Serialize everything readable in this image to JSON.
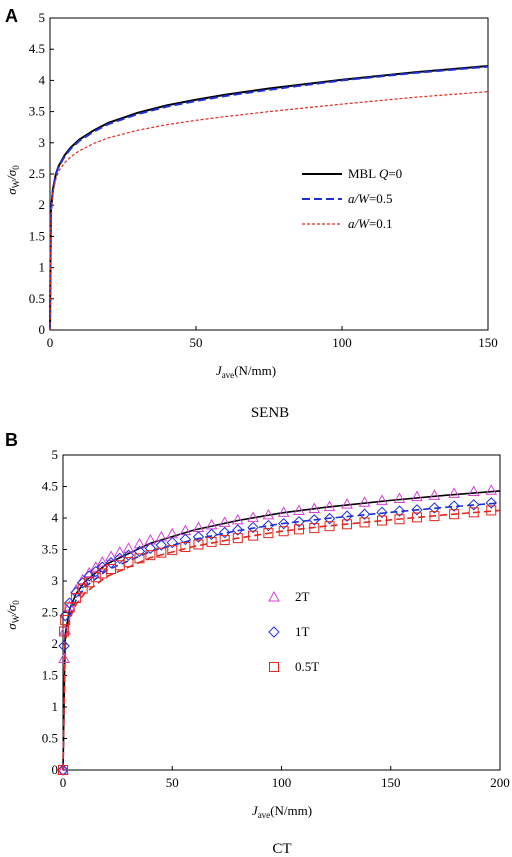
{
  "panels": [
    {
      "letter": "A",
      "caption": "SENB",
      "ylabel_main": "σ",
      "ylabel_sub": "W",
      "ylabel_slash": "/σ",
      "ylabel_sub2": "0",
      "xlabel_main": "J",
      "xlabel_sub": "ave",
      "xlabel_unit": "(N/mm)"
    },
    {
      "letter": "B",
      "caption": "CT",
      "ylabel_main": "σ",
      "ylabel_sub": "W",
      "ylabel_slash": "/σ",
      "ylabel_sub2": "0",
      "xlabel_main": "J",
      "xlabel_sub": "ave",
      "xlabel_unit": "(N/mm)"
    }
  ],
  "chart_data": [
    {
      "type": "line",
      "panel": "A",
      "xlim": [
        0,
        150
      ],
      "ylim": [
        0,
        5
      ],
      "xticks": [
        0,
        50,
        100,
        150
      ],
      "yticks": [
        0,
        0.5,
        1,
        1.5,
        2,
        2.5,
        3,
        3.5,
        4,
        4.5,
        5
      ],
      "ytick_labels": [
        "0",
        "0.5",
        "1",
        "1.5",
        "2",
        "2.5",
        "3",
        "3.5",
        "4",
        "4.5",
        "5"
      ],
      "grid": false,
      "legend_position": "right",
      "series": [
        {
          "name": "MBL Q=0",
          "label_parts": [
            "MBL ",
            "Q",
            "=0"
          ],
          "style": "solid",
          "color": "#000000",
          "x": [
            0,
            0.3,
            1,
            2,
            3,
            5,
            7,
            10,
            15,
            20,
            30,
            40,
            50,
            60,
            75,
            100,
            125,
            150
          ],
          "y": [
            0,
            1.9,
            2.25,
            2.5,
            2.63,
            2.8,
            2.92,
            3.05,
            3.2,
            3.32,
            3.48,
            3.6,
            3.69,
            3.77,
            3.87,
            4.01,
            4.13,
            4.23
          ]
        },
        {
          "name": "a/W=0.5",
          "label_parts": [
            "",
            "a/W",
            "=0.5"
          ],
          "style": "dashed",
          "color": "#1f2fd6",
          "x": [
            0,
            0.3,
            1,
            2,
            3,
            5,
            7,
            10,
            15,
            20,
            30,
            40,
            50,
            60,
            75,
            100,
            125,
            150
          ],
          "y": [
            0,
            1.9,
            2.25,
            2.5,
            2.62,
            2.78,
            2.9,
            3.03,
            3.18,
            3.3,
            3.46,
            3.58,
            3.67,
            3.75,
            3.85,
            4.0,
            4.12,
            4.22
          ]
        },
        {
          "name": "a/W=0.1",
          "label_parts": [
            "",
            "a/W",
            "=0.1"
          ],
          "style": "dotted",
          "color": "#e3271d",
          "x": [
            0,
            0.3,
            1,
            2,
            3,
            5,
            7,
            10,
            15,
            20,
            30,
            40,
            50,
            60,
            75,
            100,
            125,
            150
          ],
          "y": [
            0,
            1.85,
            2.2,
            2.42,
            2.55,
            2.68,
            2.77,
            2.87,
            2.99,
            3.08,
            3.2,
            3.29,
            3.36,
            3.42,
            3.5,
            3.62,
            3.73,
            3.82
          ]
        }
      ]
    },
    {
      "type": "scatter",
      "panel": "B",
      "xlim": [
        0,
        200
      ],
      "ylim": [
        0,
        5
      ],
      "xticks": [
        0,
        50,
        100,
        150,
        200
      ],
      "yticks": [
        0,
        0.5,
        1,
        1.5,
        2,
        2.5,
        3,
        3.5,
        4,
        4.5,
        5
      ],
      "ytick_labels": [
        "0",
        "0.5",
        "1",
        "1.5",
        "2",
        "2.5",
        "3",
        "3.5",
        "4",
        "4.5",
        "5"
      ],
      "grid": false,
      "legend_position": "center-left",
      "series": [
        {
          "name": "2T",
          "marker": "triangle",
          "color": "#d63fd6",
          "fit_x": [
            0,
            1,
            3,
            6,
            10,
            20,
            40,
            60,
            80,
            100,
            120,
            150,
            175,
            200
          ],
          "fit_y": [
            0,
            2.15,
            2.55,
            2.8,
            2.99,
            3.27,
            3.6,
            3.81,
            3.96,
            4.08,
            4.17,
            4.28,
            4.36,
            4.43
          ],
          "points_x": [
            0,
            0.5,
            1,
            3,
            6,
            9,
            12,
            15,
            18,
            22,
            26,
            30,
            35,
            40,
            45,
            50,
            56,
            62,
            68,
            74,
            80,
            87,
            94,
            101,
            108,
            115,
            122,
            130,
            138,
            146,
            154,
            162,
            170,
            179,
            188,
            196
          ],
          "points_y": [
            0,
            1.77,
            2.22,
            2.6,
            2.86,
            3.02,
            3.13,
            3.22,
            3.3,
            3.39,
            3.46,
            3.52,
            3.59,
            3.65,
            3.7,
            3.75,
            3.8,
            3.85,
            3.89,
            3.93,
            3.97,
            4.01,
            4.05,
            4.09,
            4.12,
            4.15,
            4.18,
            4.22,
            4.25,
            4.28,
            4.31,
            4.34,
            4.36,
            4.39,
            4.42,
            4.44
          ]
        },
        {
          "name": "1T",
          "marker": "diamond",
          "color": "#1f2fd6",
          "fit_x": [
            0,
            1,
            3,
            6,
            10,
            20,
            40,
            60,
            80,
            100,
            120,
            150,
            175,
            200
          ],
          "fit_y": [
            0,
            2.0,
            2.45,
            2.7,
            2.9,
            3.17,
            3.47,
            3.66,
            3.8,
            3.91,
            3.99,
            4.09,
            4.17,
            4.24
          ],
          "points_x": [
            0,
            0.5,
            1,
            3,
            6,
            9,
            12,
            15,
            18,
            22,
            26,
            30,
            35,
            40,
            45,
            50,
            56,
            62,
            68,
            74,
            80,
            87,
            94,
            101,
            108,
            115,
            122,
            130,
            138,
            146,
            154,
            162,
            170,
            179,
            188,
            196
          ],
          "points_y": [
            0,
            1.97,
            2.45,
            2.65,
            2.82,
            2.97,
            3.08,
            3.15,
            3.22,
            3.29,
            3.36,
            3.41,
            3.47,
            3.52,
            3.57,
            3.61,
            3.66,
            3.7,
            3.74,
            3.77,
            3.81,
            3.85,
            3.88,
            3.91,
            3.94,
            3.97,
            3.99,
            4.03,
            4.06,
            4.09,
            4.11,
            4.13,
            4.16,
            4.19,
            4.21,
            4.24
          ]
        },
        {
          "name": "0.5T",
          "marker": "square",
          "color": "#e3271d",
          "fit_x": [
            0,
            1,
            3,
            6,
            10,
            20,
            40,
            60,
            80,
            100,
            120,
            150,
            175,
            200
          ],
          "fit_y": [
            0,
            2.02,
            2.4,
            2.63,
            2.81,
            3.07,
            3.37,
            3.55,
            3.68,
            3.79,
            3.87,
            3.97,
            4.05,
            4.12
          ],
          "points_x": [
            0,
            0.5,
            1,
            3,
            6,
            9,
            12,
            15,
            18,
            22,
            26,
            30,
            35,
            40,
            45,
            50,
            56,
            62,
            68,
            74,
            80,
            87,
            94,
            101,
            108,
            115,
            122,
            130,
            138,
            146,
            154,
            162,
            170,
            179,
            188,
            196
          ],
          "points_y": [
            0,
            2.2,
            2.38,
            2.58,
            2.73,
            2.88,
            2.98,
            3.06,
            3.12,
            3.19,
            3.25,
            3.3,
            3.36,
            3.41,
            3.45,
            3.49,
            3.54,
            3.58,
            3.62,
            3.65,
            3.68,
            3.72,
            3.76,
            3.79,
            3.82,
            3.84,
            3.87,
            3.9,
            3.93,
            3.96,
            3.98,
            4.01,
            4.03,
            4.06,
            4.09,
            4.12
          ]
        }
      ]
    }
  ]
}
